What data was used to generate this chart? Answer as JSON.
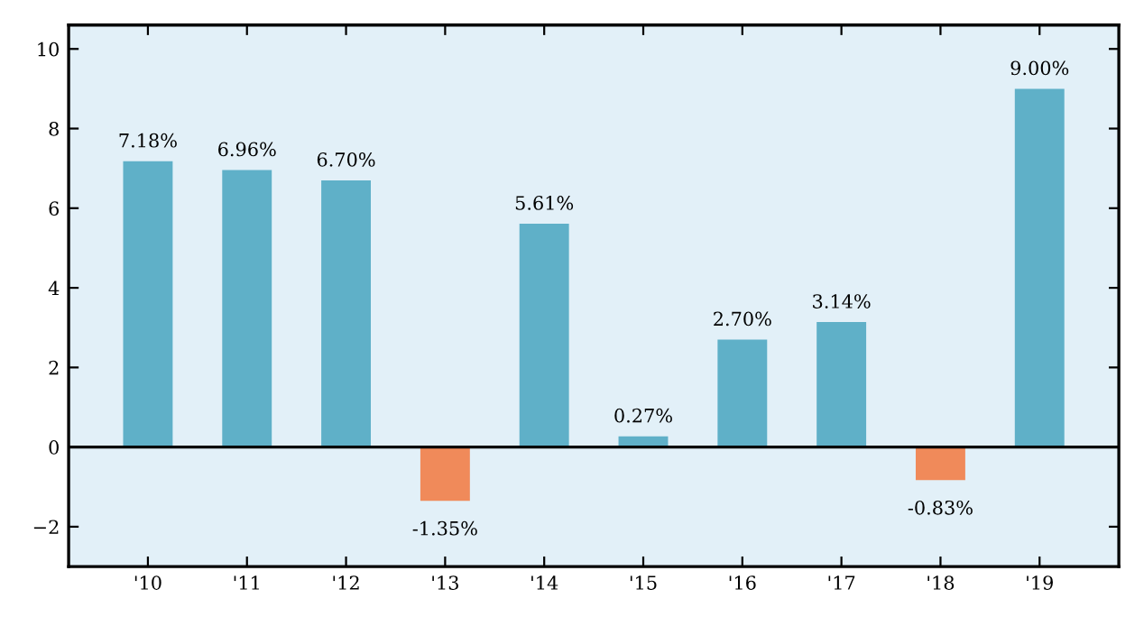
{
  "chart_data": {
    "type": "bar",
    "categories": [
      "'10",
      "'11",
      "'12",
      "'13",
      "'14",
      "'15",
      "'16",
      "'17",
      "'18",
      "'19"
    ],
    "values": [
      7.18,
      6.96,
      6.7,
      -1.35,
      5.61,
      0.27,
      2.7,
      3.14,
      -0.83,
      9.0
    ],
    "colors": [
      "#5fb0c8",
      "#5fb0c8",
      "#5fb0c8",
      "#f08a5a",
      "#5fb0c8",
      "#5fb0c8",
      "#5fb0c8",
      "#5fb0c8",
      "#f08a5a",
      "#5fb0c8"
    ],
    "value_labels": [
      "7.18%",
      "6.96%",
      "6.70%",
      "-1.35%",
      "5.61%",
      "0.27%",
      "2.70%",
      "3.14%",
      "-0.83%",
      "9.00%"
    ],
    "ylim": [
      -3,
      10.6
    ],
    "yticks": [
      {
        "value": -2,
        "label": "−2"
      },
      0,
      2,
      4,
      6,
      8,
      10
    ],
    "ref_lines": [
      {
        "axis": "y",
        "value": 0,
        "color": "#000000"
      }
    ],
    "grid": false
  }
}
